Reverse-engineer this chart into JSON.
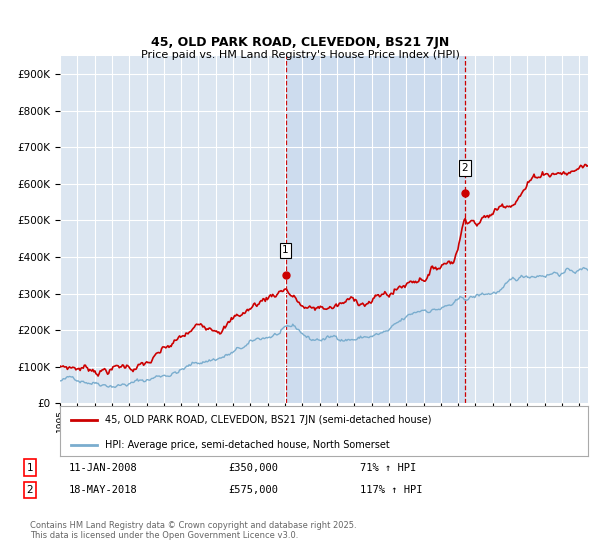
{
  "title": "45, OLD PARK ROAD, CLEVEDON, BS21 7JN",
  "subtitle": "Price paid vs. HM Land Registry's House Price Index (HPI)",
  "property_label": "45, OLD PARK ROAD, CLEVEDON, BS21 7JN (semi-detached house)",
  "hpi_label": "HPI: Average price, semi-detached house, North Somerset",
  "footnote": "Contains HM Land Registry data © Crown copyright and database right 2025.\nThis data is licensed under the Open Government Licence v3.0.",
  "transaction1_date": "11-JAN-2008",
  "transaction1_price": "£350,000",
  "transaction1_hpi": "71% ↑ HPI",
  "transaction2_date": "18-MAY-2018",
  "transaction2_price": "£575,000",
  "transaction2_hpi": "117% ↑ HPI",
  "vline1_x": 2008.03,
  "vline2_x": 2018.38,
  "marker1_price": 350000,
  "marker2_price": 575000,
  "ylim": [
    0,
    950000
  ],
  "xlim_start": 1995,
  "xlim_end": 2025.5,
  "bg_color": "#dce6f1",
  "highlight_color": "#c8d8ed",
  "grid_color": "#ffffff",
  "red_line_color": "#cc0000",
  "blue_line_color": "#7aadce",
  "vline_color": "#cc0000",
  "ytick_labels": [
    "£0",
    "£100K",
    "£200K",
    "£300K",
    "£400K",
    "£500K",
    "£600K",
    "£700K",
    "£800K",
    "£900K"
  ],
  "ytick_values": [
    0,
    100000,
    200000,
    300000,
    400000,
    500000,
    600000,
    700000,
    800000,
    900000
  ]
}
